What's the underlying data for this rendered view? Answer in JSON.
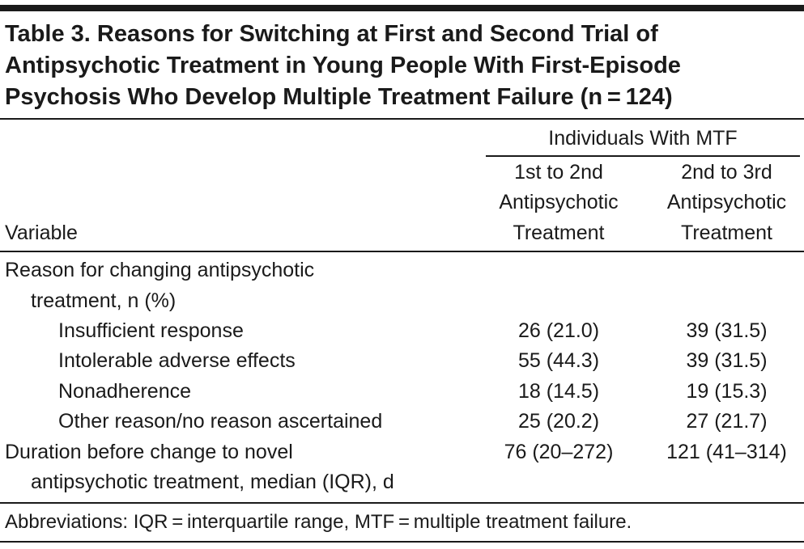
{
  "title_lines": [
    "Table 3. Reasons for Switching at First and Second Trial of",
    "Antipsychotic Treatment in Young People With First-Episode",
    "Psychosis Who Develop Multiple Treatment Failure (n = 124)"
  ],
  "table": {
    "group_header": "Individuals With MTF",
    "columns": [
      {
        "lines": [
          "Variable"
        ]
      },
      {
        "lines": [
          "1st to 2nd",
          "Antipsychotic",
          "Treatment"
        ]
      },
      {
        "lines": [
          "2nd to 3rd",
          "Antipsychotic",
          "Treatment"
        ]
      }
    ],
    "rows": [
      {
        "lines": [
          "Reason for changing antipsychotic",
          "treatment, n (%)"
        ]
      },
      {
        "lines": [
          "Insufficient response"
        ],
        "values": [
          "26 (21.0)",
          "39 (31.5)"
        ]
      },
      {
        "lines": [
          "Intolerable adverse effects"
        ],
        "values": [
          "55 (44.3)",
          "39 (31.5)"
        ]
      },
      {
        "lines": [
          "Nonadherence"
        ],
        "values": [
          "18 (14.5)",
          "19 (15.3)"
        ]
      },
      {
        "lines": [
          "Other reason/no reason ascertained"
        ],
        "values": [
          "25 (20.2)",
          "27 (21.7)"
        ]
      },
      {
        "lines": [
          "Duration before change to novel",
          "antipsychotic treatment, median (IQR), d"
        ],
        "values": [
          "76 (20–272)",
          "121 (41–314)"
        ]
      }
    ]
  },
  "footnote": "Abbreviations: IQR = interquartile range, MTF = multiple treatment failure."
}
